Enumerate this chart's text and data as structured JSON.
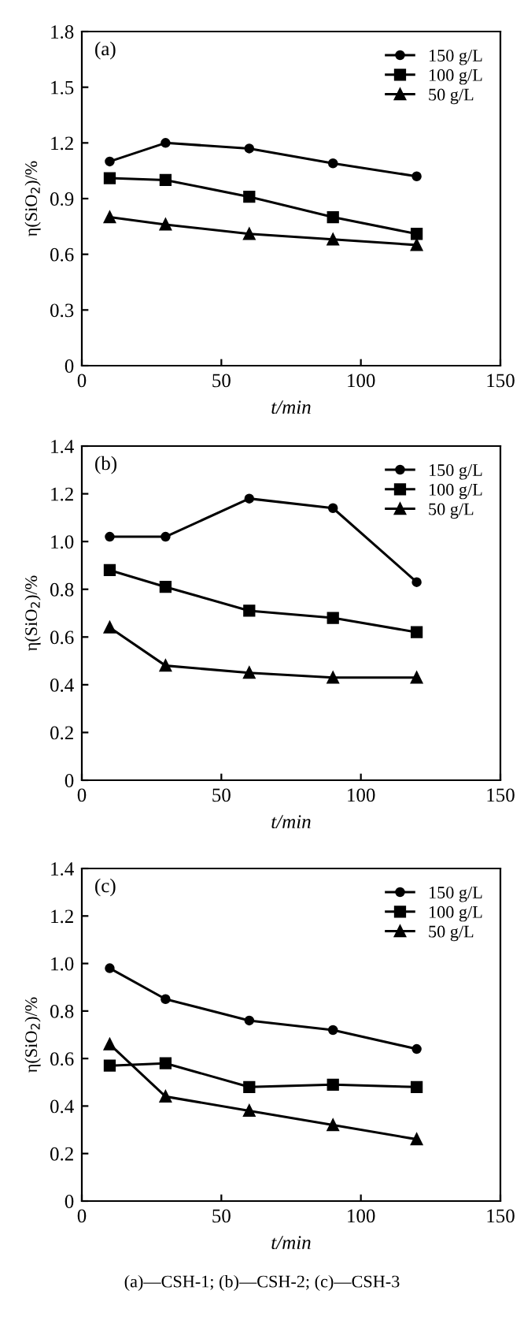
{
  "chart_data": [
    {
      "type": "line",
      "title": "(a)",
      "xlabel": "t/min",
      "ylabel": "η(SiO$_{2}$)/%",
      "xlim": [
        0,
        150
      ],
      "xticks": [
        0,
        50,
        100,
        150
      ],
      "ylim": [
        0,
        1.8
      ],
      "yticks": [
        0,
        0.3,
        0.6,
        0.9,
        1.2,
        1.5,
        1.8
      ],
      "legend": "top right",
      "grid": false,
      "line_style": "solid",
      "x": [
        10,
        30,
        60,
        90,
        120
      ],
      "series": [
        {
          "name": "150 g/L",
          "color": "#000000",
          "marker": "circle",
          "values": [
            1.1,
            1.2,
            1.17,
            1.09,
            1.02
          ]
        },
        {
          "name": "100 g/L",
          "color": "#000000",
          "marker": "square",
          "values": [
            1.01,
            1.0,
            0.91,
            0.8,
            0.71
          ]
        },
        {
          "name": "50 g/L",
          "color": "#000000",
          "marker": "triangle",
          "values": [
            0.8,
            0.76,
            0.71,
            0.68,
            0.65
          ]
        }
      ]
    },
    {
      "type": "line",
      "title": "(b)",
      "xlabel": "t/min",
      "ylabel": "η(SiO$_{2}$)/%",
      "xlim": [
        0,
        150
      ],
      "xticks": [
        0,
        50,
        100,
        150
      ],
      "ylim": [
        0,
        1.4
      ],
      "yticks": [
        0,
        0.2,
        0.4,
        0.6,
        0.8,
        {
          "value": 1,
          "label": "1.0"
        },
        1.2,
        1.4
      ],
      "legend": "top right",
      "grid": false,
      "line_style": "solid",
      "x": [
        10,
        30,
        60,
        90,
        120
      ],
      "series": [
        {
          "name": "150 g/L",
          "color": "#000000",
          "marker": "circle",
          "values": [
            1.02,
            1.02,
            1.18,
            1.14,
            0.83
          ]
        },
        {
          "name": "100 g/L",
          "color": "#000000",
          "marker": "square",
          "values": [
            0.88,
            0.81,
            0.71,
            0.68,
            0.62
          ]
        },
        {
          "name": "50 g/L",
          "color": "#000000",
          "marker": "triangle",
          "values": [
            0.64,
            0.48,
            0.45,
            0.43,
            0.43
          ]
        }
      ]
    },
    {
      "type": "line",
      "title": "(c)",
      "xlabel": "t/min",
      "ylabel": "η(SiO$_{2}$)/%",
      "xlim": [
        0,
        150
      ],
      "xticks": [
        0,
        50,
        100,
        150
      ],
      "ylim": [
        0,
        1.4
      ],
      "yticks": [
        0,
        0.2,
        0.4,
        0.6,
        0.8,
        {
          "value": 1,
          "label": "1.0"
        },
        1.2,
        1.4
      ],
      "legend": "top right",
      "grid": false,
      "line_style": "solid",
      "x": [
        10,
        30,
        60,
        90,
        120
      ],
      "annotations": [
        "(a)—CSH-1; (b)—CSH-2; (c)—CSH-3"
      ],
      "series": [
        {
          "name": "150 g/L",
          "color": "#000000",
          "marker": "circle",
          "values": [
            0.98,
            0.85,
            0.76,
            0.72,
            0.64
          ]
        },
        {
          "name": "100 g/L",
          "color": "#000000",
          "marker": "square",
          "values": [
            0.57,
            0.58,
            0.48,
            0.49,
            0.48
          ]
        },
        {
          "name": "50 g/L",
          "color": "#000000",
          "marker": "triangle",
          "values": [
            0.66,
            0.44,
            0.38,
            0.32,
            0.26
          ]
        }
      ]
    }
  ]
}
